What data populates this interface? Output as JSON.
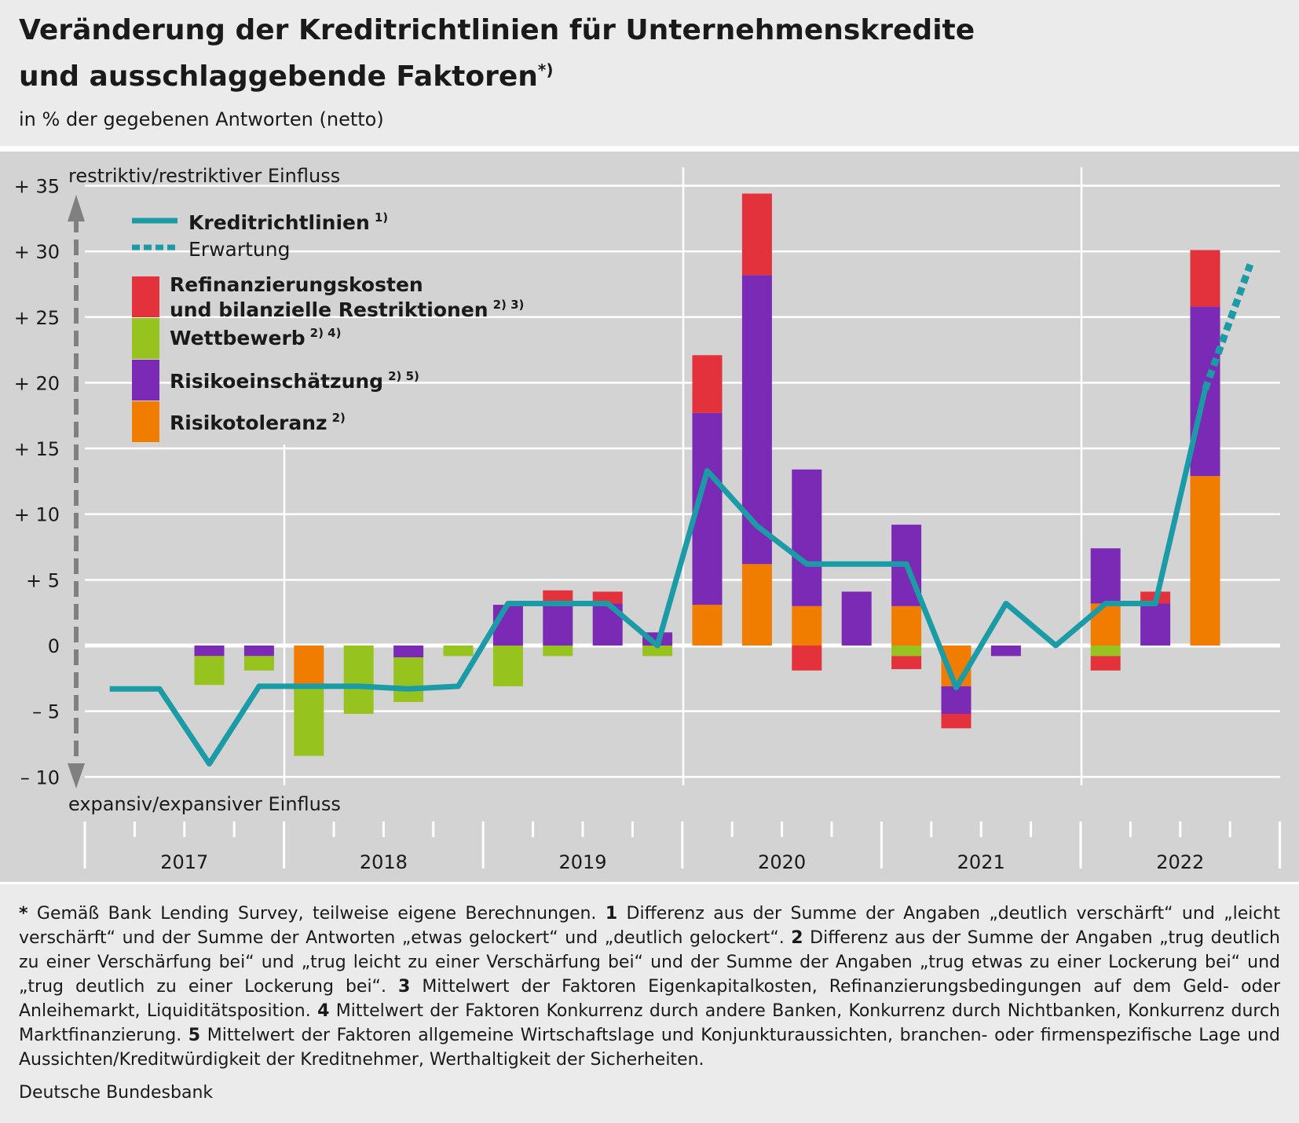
{
  "title_line1": "Veränderung der Kreditrichtlinien für Unternehmenskredite",
  "title_line2": "und ausschlaggebende Faktoren",
  "title_sup": "*)",
  "subtitle": "in % der gegebenen Antworten (netto)",
  "axis_top_label": "restriktiv/restriktiver Einfluss",
  "axis_bottom_label": "expansiv/expansiver Einfluss",
  "colors": {
    "line": "#1a9ba6",
    "refinanzierung": "#e3323b",
    "wettbewerb": "#96c31e",
    "risikoeinschaetzung": "#7b2ab5",
    "risikotoleranz": "#f07d00",
    "plot_bg": "#d3d3d3",
    "arrow": "#808080"
  },
  "legend": [
    {
      "label": "Kreditrichtlinien",
      "sup": "1)",
      "kind": "line",
      "bold": true
    },
    {
      "label": "Erwartung",
      "sup": "",
      "kind": "dash",
      "bold": false
    },
    {
      "label": "Refinanzierungskosten",
      "label2": "und bilanzielle Restriktionen",
      "sup": "2) 3)",
      "kind": "box",
      "color_key": "refinanzierung",
      "bold": true
    },
    {
      "label": "Wettbewerb",
      "sup": "2) 4)",
      "kind": "box",
      "color_key": "wettbewerb",
      "bold": true
    },
    {
      "label": "Risikoeinschätzung",
      "sup": "2) 5)",
      "kind": "box",
      "color_key": "risikoeinschaetzung",
      "bold": true
    },
    {
      "label": "Risikotoleranz",
      "sup": "2)",
      "kind": "box",
      "color_key": "risikotoleranz",
      "bold": true
    }
  ],
  "chart_data": {
    "type": "bar",
    "stacked": true,
    "ylim": [
      -10,
      35
    ],
    "yticks": [
      {
        "v": 35,
        "label": "+ 35"
      },
      {
        "v": 30,
        "label": "+ 30"
      },
      {
        "v": 25,
        "label": "+ 25"
      },
      {
        "v": 20,
        "label": "+ 20"
      },
      {
        "v": 15,
        "label": "+ 15"
      },
      {
        "v": 10,
        "label": "+ 10"
      },
      {
        "v": 5,
        "label": "+  5"
      },
      {
        "v": 0,
        "label": "0"
      },
      {
        "v": -5,
        "label": "–  5"
      },
      {
        "v": -10,
        "label": "– 10"
      }
    ],
    "years": [
      "2017",
      "2018",
      "2019",
      "2020",
      "2021",
      "2022"
    ],
    "categories": [
      "2017 Q1",
      "2017 Q2",
      "2017 Q3",
      "2017 Q4",
      "2018 Q1",
      "2018 Q2",
      "2018 Q3",
      "2018 Q4",
      "2019 Q1",
      "2019 Q2",
      "2019 Q3",
      "2019 Q4",
      "2020 Q1",
      "2020 Q2",
      "2020 Q3",
      "2020 Q4",
      "2021 Q1",
      "2021 Q2",
      "2021 Q3",
      "2021 Q4",
      "2022 Q1",
      "2022 Q2",
      "2022 Q3",
      "2022 Q4"
    ],
    "series": [
      {
        "name": "Kreditrichtlinien",
        "type": "line",
        "values": [
          -3.3,
          -3.3,
          -9,
          -3.1,
          -3.1,
          -3.1,
          -3.3,
          -3.1,
          3.2,
          3.2,
          3.2,
          0,
          13.3,
          9.1,
          6.2,
          6.2,
          6.2,
          -3.2,
          3.2,
          0,
          3.2,
          3.2,
          19.5,
          null
        ]
      },
      {
        "name": "Erwartung",
        "type": "line-dashed",
        "values": [
          null,
          null,
          null,
          null,
          null,
          null,
          null,
          null,
          null,
          null,
          null,
          null,
          null,
          null,
          null,
          null,
          null,
          null,
          null,
          null,
          null,
          null,
          19.5,
          29
        ]
      },
      {
        "name": "Risikotoleranz",
        "type": "bar",
        "values": [
          0,
          0,
          0,
          0,
          -3.1,
          0,
          0,
          0,
          0,
          0,
          0,
          0,
          3.1,
          6.2,
          3.0,
          0,
          3.0,
          -3.1,
          0,
          0,
          3.2,
          0,
          12.9,
          0
        ]
      },
      {
        "name": "Risikoeinschätzung",
        "type": "bar",
        "values": [
          0,
          0,
          -0.8,
          -0.8,
          0,
          0,
          -0.9,
          0,
          3.1,
          3.3,
          3.2,
          1.0,
          14.6,
          22.0,
          10.4,
          4.1,
          6.2,
          -2.1,
          -0.8,
          0,
          4.2,
          3.2,
          12.9,
          0
        ]
      },
      {
        "name": "Wettbewerb",
        "type": "bar",
        "values": [
          0,
          0,
          -2.2,
          -1.1,
          -5.3,
          -5.2,
          -3.4,
          -0.8,
          -3.1,
          -0.8,
          0,
          -0.8,
          0,
          0,
          0,
          0,
          -0.8,
          0,
          0,
          0,
          -0.8,
          0,
          0,
          0
        ]
      },
      {
        "name": "Refinanzierungskosten und bilanzielle Restriktionen",
        "type": "bar",
        "values": [
          0,
          0,
          0,
          0,
          0,
          0,
          0,
          0,
          0,
          0.9,
          0.9,
          0,
          4.4,
          6.2,
          -1.9,
          0,
          -1.0,
          -1.1,
          0,
          0,
          -1.1,
          0.9,
          4.3,
          0
        ]
      }
    ]
  },
  "footnotes": [
    {
      "marker": "*",
      "text": " Gemäß Bank Lending Survey, teilweise eigene Berechnungen. "
    },
    {
      "marker": "1",
      "text": " Differenz aus der Summe der Angaben „deutlich verschärft“ und „leicht verschärft“ und der Summe der Antworten „etwas gelockert“ und „deutlich gelockert“. "
    },
    {
      "marker": "2",
      "text": " Differenz aus der Summe der Angaben „trug deutlich zu einer Verschärfung bei“ und „trug leicht zu einer Verschärfung bei“ und der Summe der Angaben „trug etwas zu einer Lockerung bei“ und „trug deutlich zu einer Lockerung bei“. "
    },
    {
      "marker": "3",
      "text": " Mittelwert der Faktoren Eigenkapitalkosten, Refinanzierungsbedingungen auf dem Geld- oder Anleihemarkt, Liquiditätsposition. "
    },
    {
      "marker": "4",
      "text": " Mittelwert der Faktoren Konkurrenz durch andere Banken, Konkurrenz durch Nichtbanken, Konkurrenz durch Marktfinanzierung. "
    },
    {
      "marker": "5",
      "text": " Mittelwert der Faktoren allgemeine Wirtschaftslage und Konjunkturaussichten, branchen- oder firmenspezifische Lage und Aussichten/Kreditwürdigkeit der Kreditnehmer, Werthaltigkeit der Sicherheiten."
    }
  ],
  "source": "Deutsche Bundesbank"
}
